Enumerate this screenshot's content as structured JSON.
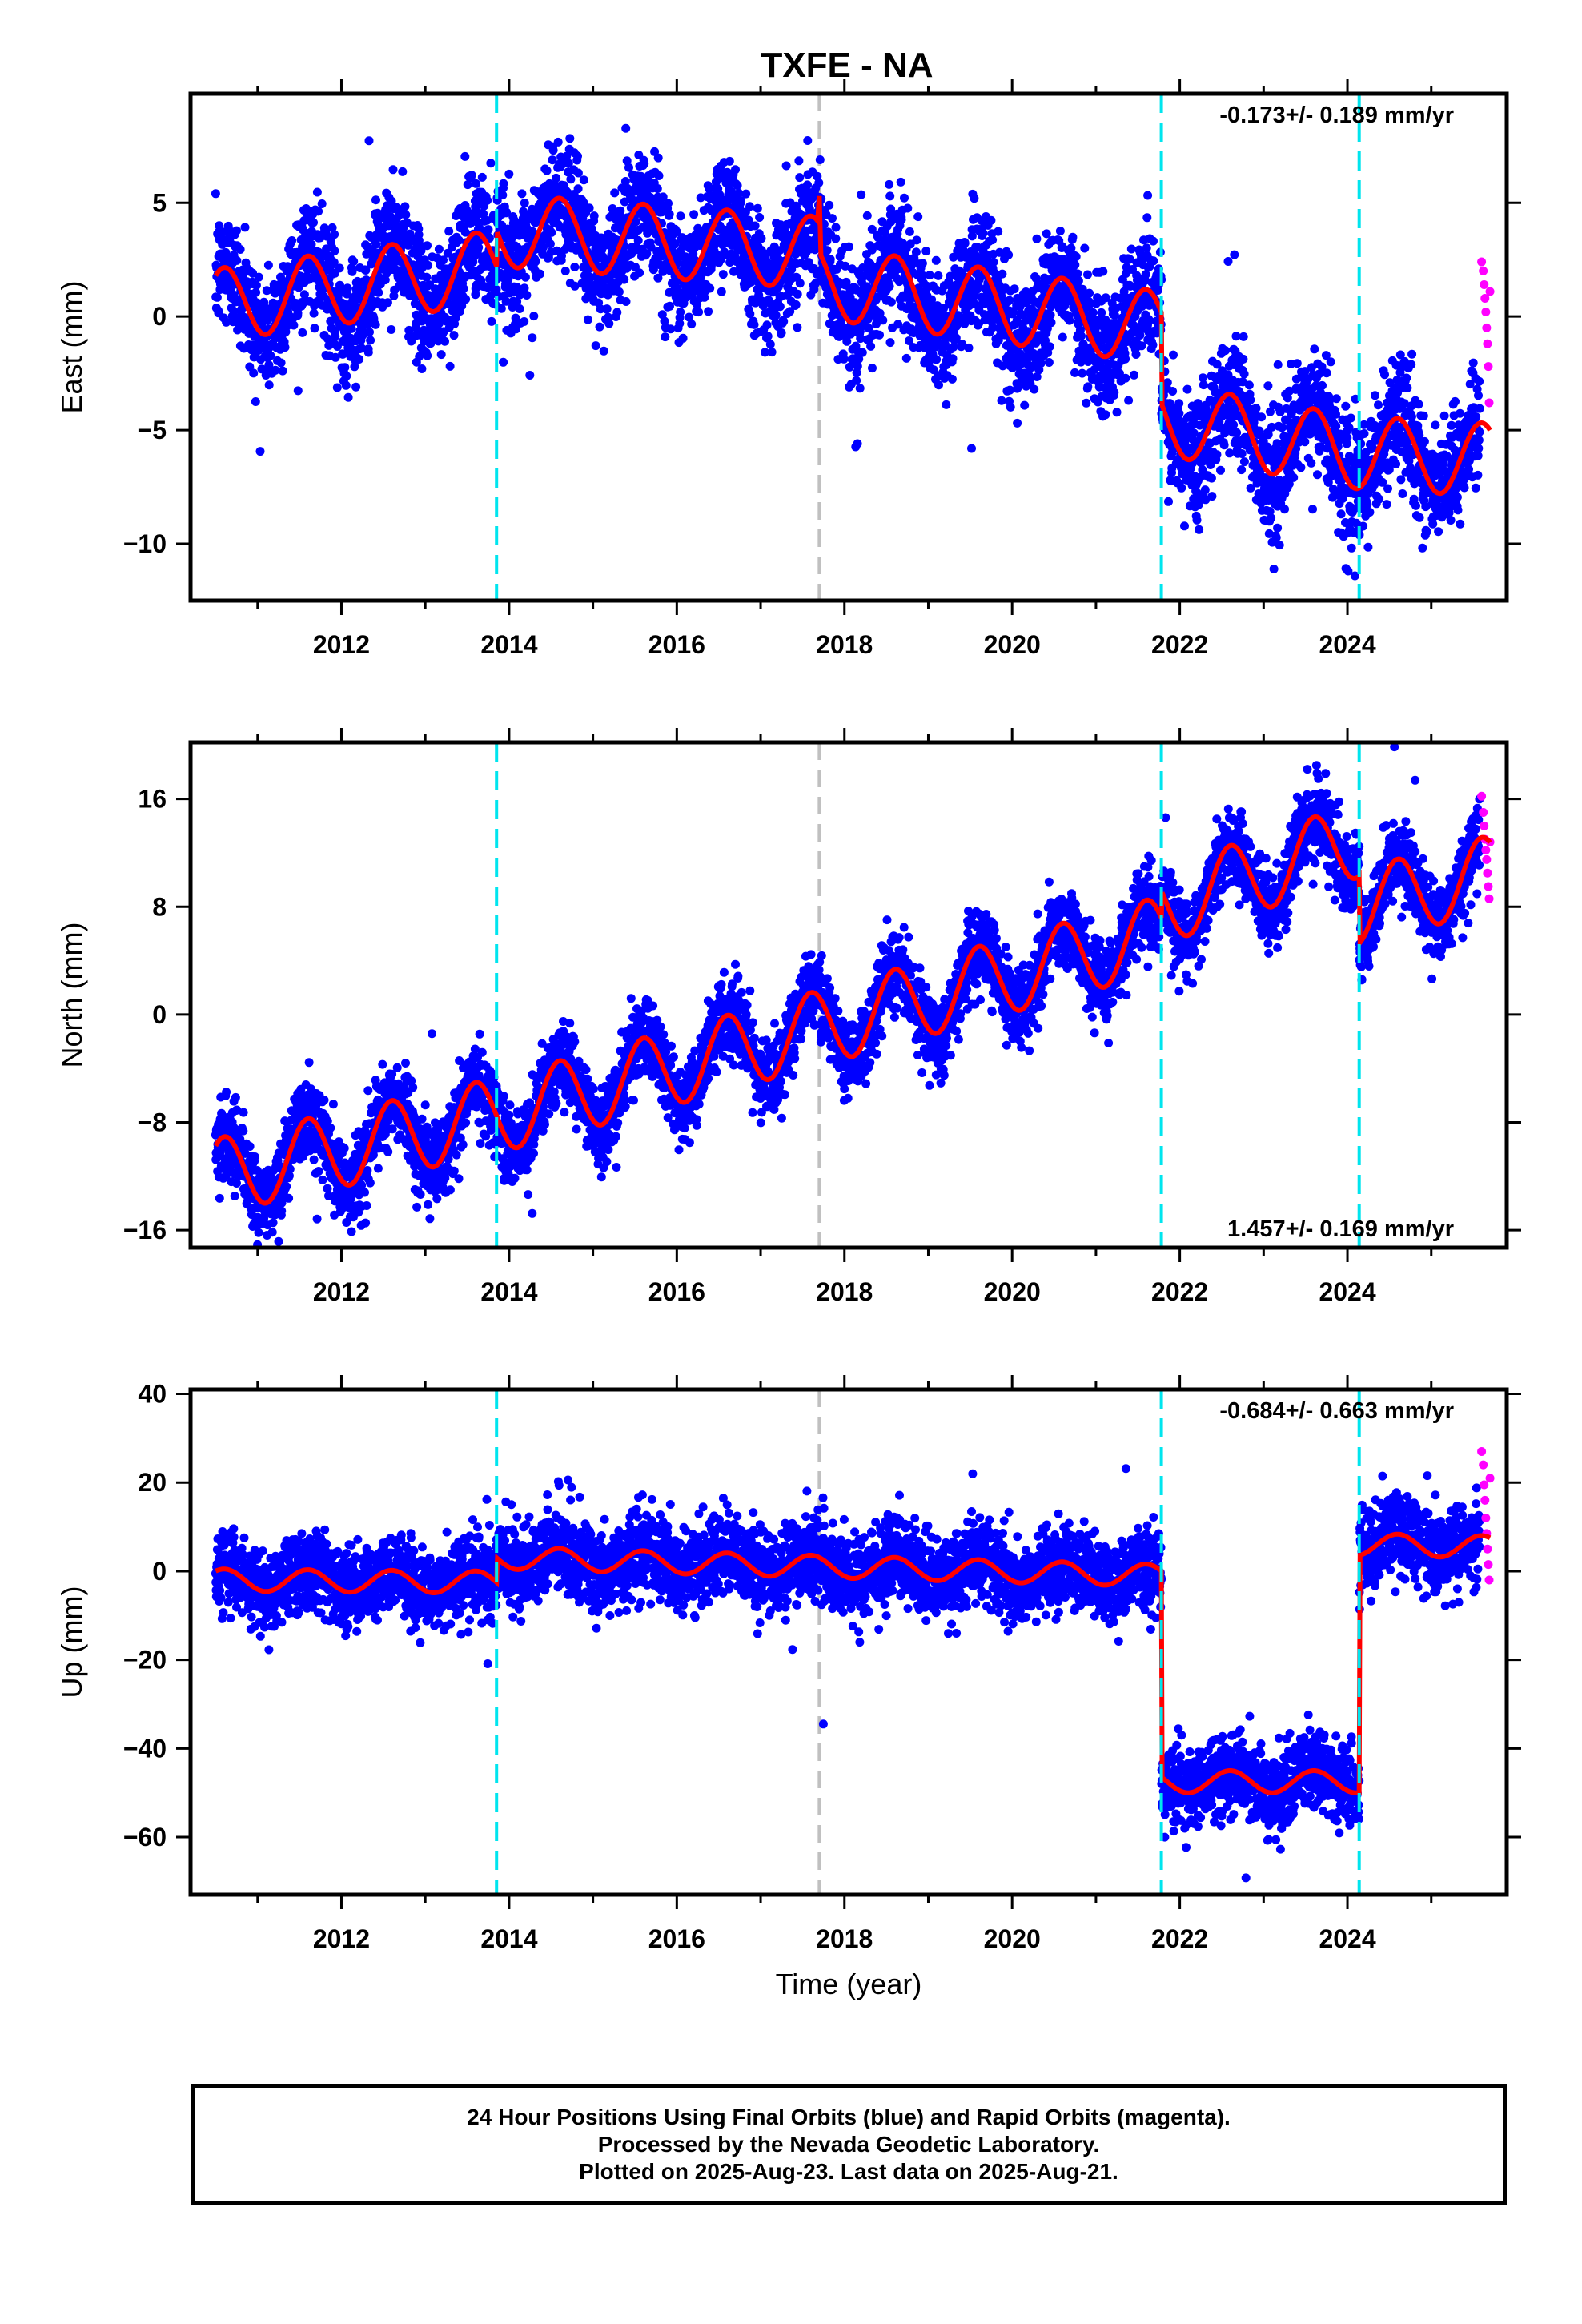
{
  "chart_title": "TXFE - NA",
  "footer": {
    "line1": "24 Hour Positions Using Final Orbits (blue) and Rapid Orbits (magenta).",
    "line2": "Processed by the Nevada Geodetic Laboratory.",
    "line3": "Plotted on 2025-Aug-23. Last data on 2025-Aug-21."
  },
  "colors": {
    "final_orbits": "#0000ff",
    "rapid_orbits": "#ff00ff",
    "model_fit": "#ff0000",
    "equipment_change": "#00e5ee",
    "earthquake": "#c0c0c0"
  },
  "chart_data": [
    {
      "type": "scatter",
      "panel": "east",
      "title": "TXFE - NA",
      "xlabel": "",
      "ylabel": "East (mm)",
      "xlim": [
        2010.2,
        2025.9
      ],
      "ylim": [
        -12.5,
        9.8
      ],
      "x_ticks": [
        2012,
        2014,
        2016,
        2018,
        2020,
        2022,
        2024
      ],
      "y_ticks": [
        5,
        0,
        -5,
        -10
      ],
      "y_tick_labels": [
        "5",
        "0",
        "−5",
        "−10"
      ],
      "rate_text": "-0.173+/- 0.189 mm/yr",
      "rate_position": "top-right",
      "equipment_change_lines": [
        2013.85,
        2021.78,
        2024.14
      ],
      "earthquake_lines": [
        2017.7
      ],
      "trend": [
        {
          "t": 2010.5,
          "v": 0.5
        },
        {
          "t": 2013.85,
          "v": 2.2
        },
        {
          "t": 2013.851,
          "v": 3.8
        },
        {
          "t": 2017.68,
          "v": 2.8
        },
        {
          "t": 2017.7,
          "v": 4.0
        },
        {
          "t": 2017.72,
          "v": 1.5
        },
        {
          "t": 2021.78,
          "v": -0.5
        },
        {
          "t": 2021.781,
          "v": -4.5
        },
        {
          "t": 2024.14,
          "v": -6.0
        },
        {
          "t": 2025.7,
          "v": -6.3
        }
      ],
      "seasonal_amplitude": 1.6,
      "scatter_spread": 1.3,
      "rapid_points": [
        {
          "t": 2025.6,
          "v": 2.4
        },
        {
          "t": 2025.62,
          "v": 2.0
        },
        {
          "t": 2025.63,
          "v": 1.4
        },
        {
          "t": 2025.64,
          "v": 0.8
        },
        {
          "t": 2025.65,
          "v": 0.2
        },
        {
          "t": 2025.66,
          "v": -0.5
        },
        {
          "t": 2025.67,
          "v": -1.2
        },
        {
          "t": 2025.68,
          "v": -2.2
        },
        {
          "t": 2025.69,
          "v": -3.8
        },
        {
          "t": 2025.7,
          "v": 1.1
        }
      ]
    },
    {
      "type": "scatter",
      "panel": "north",
      "title": "",
      "xlabel": "",
      "ylabel": "North (mm)",
      "xlim": [
        2010.2,
        2025.9
      ],
      "ylim": [
        -17.3,
        20.2
      ],
      "x_ticks": [
        2012,
        2014,
        2016,
        2018,
        2020,
        2022,
        2024
      ],
      "y_ticks": [
        16,
        8,
        0,
        -8,
        -16
      ],
      "y_tick_labels": [
        "16",
        "8",
        "0",
        "−8",
        "−16"
      ],
      "rate_text": "1.457+/- 0.169 mm/yr",
      "rate_position": "bottom-right",
      "equipment_change_lines": [
        2013.85,
        2021.78,
        2024.14
      ],
      "earthquake_lines": [
        2017.7
      ],
      "trend": [
        {
          "t": 2010.5,
          "v": -12.0
        },
        {
          "t": 2013.85,
          "v": -7.5
        },
        {
          "t": 2017.7,
          "v": -1.0
        },
        {
          "t": 2021.78,
          "v": 6.0
        },
        {
          "t": 2021.781,
          "v": 8.0
        },
        {
          "t": 2024.14,
          "v": 13.0
        },
        {
          "t": 2024.141,
          "v": 8.0
        },
        {
          "t": 2025.7,
          "v": 10.5
        }
      ],
      "seasonal_amplitude": 2.8,
      "scatter_spread": 1.4,
      "rapid_points": [
        {
          "t": 2025.6,
          "v": 16.2
        },
        {
          "t": 2025.62,
          "v": 15.0
        },
        {
          "t": 2025.63,
          "v": 14.0
        },
        {
          "t": 2025.64,
          "v": 13.0
        },
        {
          "t": 2025.65,
          "v": 12.2
        },
        {
          "t": 2025.66,
          "v": 11.5
        },
        {
          "t": 2025.67,
          "v": 10.5
        },
        {
          "t": 2025.68,
          "v": 9.5
        },
        {
          "t": 2025.69,
          "v": 8.6
        },
        {
          "t": 2025.7,
          "v": 12.8
        }
      ]
    },
    {
      "type": "scatter",
      "panel": "up",
      "title": "",
      "xlabel": "Time (year)",
      "ylabel": "Up (mm)",
      "xlim": [
        2010.2,
        2025.9
      ],
      "ylim": [
        -73,
        41
      ],
      "x_ticks": [
        2012,
        2014,
        2016,
        2018,
        2020,
        2022,
        2024
      ],
      "y_ticks": [
        40,
        20,
        0,
        -20,
        -40,
        -60
      ],
      "y_tick_labels": [
        "40",
        "20",
        "0",
        "−20",
        "−40",
        "−60"
      ],
      "rate_text": "-0.684+/- 0.663 mm/yr",
      "rate_position": "top-right",
      "equipment_change_lines": [
        2013.85,
        2021.78,
        2024.14
      ],
      "earthquake_lines": [
        2017.7
      ],
      "trend": [
        {
          "t": 2010.5,
          "v": -2.0
        },
        {
          "t": 2013.85,
          "v": -2.5
        },
        {
          "t": 2013.851,
          "v": 3.0
        },
        {
          "t": 2021.78,
          "v": -1.0
        },
        {
          "t": 2021.781,
          "v": -47.5
        },
        {
          "t": 2024.14,
          "v": -47.5
        },
        {
          "t": 2024.141,
          "v": 6.0
        },
        {
          "t": 2025.7,
          "v": 5.5
        }
      ],
      "seasonal_amplitude": 2.5,
      "scatter_spread": 4.5,
      "rapid_points": [
        {
          "t": 2025.6,
          "v": 27.0
        },
        {
          "t": 2025.62,
          "v": 24.0
        },
        {
          "t": 2025.63,
          "v": 19.5
        },
        {
          "t": 2025.64,
          "v": 16.0
        },
        {
          "t": 2025.65,
          "v": 12.0
        },
        {
          "t": 2025.66,
          "v": 8.5
        },
        {
          "t": 2025.67,
          "v": 5.0
        },
        {
          "t": 2025.68,
          "v": 1.5
        },
        {
          "t": 2025.69,
          "v": -2.0
        },
        {
          "t": 2025.7,
          "v": 21.0
        }
      ]
    }
  ]
}
